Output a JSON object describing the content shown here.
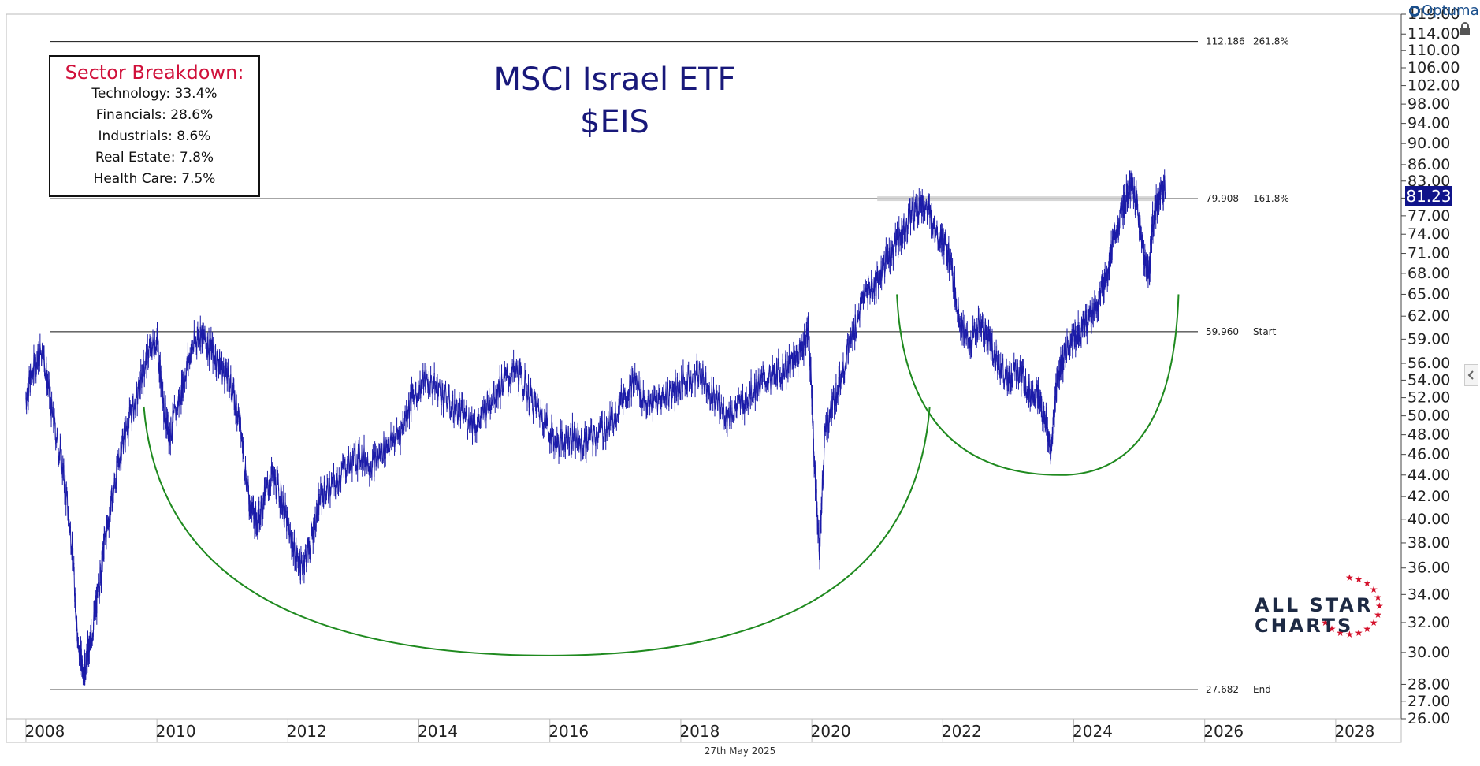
{
  "title": {
    "line1": "MSCI Israel ETF",
    "line2": "$EIS"
  },
  "sector_box": {
    "title": "Sector Breakdown:",
    "items": [
      "Technology: 33.4%",
      "Financials: 28.6%",
      "Industrials: 8.6%",
      "Real Estate: 7.8%",
      "Health Care: 7.5%"
    ]
  },
  "date_label": "27th May 2025",
  "brand": "Optuma",
  "logo": {
    "line1": "ALL STAR",
    "line2": "CHARTS"
  },
  "last_price": "81.23",
  "chart_data": {
    "type": "line",
    "title": "MSCI Israel ETF $EIS",
    "y_scale": "log",
    "ylim": [
      26,
      119
    ],
    "xlim": [
      2007.7,
      2029.0
    ],
    "x_ticks": [
      "2008",
      "2010",
      "2012",
      "2014",
      "2016",
      "2018",
      "2020",
      "2022",
      "2024",
      "2026",
      "2028"
    ],
    "y_ticks": [
      "119.00",
      "114.00",
      "110.00",
      "106.00",
      "102.00",
      "98.00",
      "94.00",
      "90.00",
      "86.00",
      "83.00",
      "80.00",
      "77.00",
      "74.00",
      "71.00",
      "68.00",
      "65.00",
      "62.00",
      "59.00",
      "56.00",
      "54.00",
      "52.00",
      "50.00",
      "48.00",
      "46.00",
      "44.00",
      "42.00",
      "40.00",
      "38.00",
      "36.00",
      "34.00",
      "32.00",
      "30.00",
      "28.00",
      "27.00",
      "26.00"
    ],
    "levels": [
      {
        "value": 112.186,
        "label": "112.186",
        "tag": "261.8%"
      },
      {
        "value": 79.908,
        "label": "79.908",
        "tag": "161.8%"
      },
      {
        "value": 59.96,
        "label": "59.960",
        "tag": "Start"
      },
      {
        "value": 27.682,
        "label": "27.682",
        "tag": "End"
      }
    ],
    "series": [
      {
        "x": [
          2008.0,
          2008.1,
          2008.25,
          2008.4,
          2008.55,
          2008.7,
          2008.8,
          2008.9,
          2009.0,
          2009.1,
          2009.2,
          2009.35,
          2009.5,
          2009.7,
          2009.85,
          2010.0,
          2010.1,
          2010.2,
          2010.35,
          2010.5,
          2010.65,
          2010.8,
          2010.95,
          2011.1,
          2011.25,
          2011.4,
          2011.5,
          2011.6,
          2011.75,
          2011.9,
          2012.05,
          2012.2,
          2012.35,
          2012.5,
          2012.7,
          2012.9,
          2013.1,
          2013.3,
          2013.5,
          2013.7,
          2013.9,
          2014.1,
          2014.3,
          2014.5,
          2014.7,
          2014.9,
          2015.1,
          2015.3,
          2015.5,
          2015.7,
          2015.9,
          2016.1,
          2016.3,
          2016.5,
          2016.7,
          2016.9,
          2017.1,
          2017.3,
          2017.5,
          2017.7,
          2017.9,
          2018.1,
          2018.3,
          2018.5,
          2018.7,
          2018.9,
          2019.1,
          2019.3,
          2019.5,
          2019.7,
          2019.85,
          2019.95,
          2020.05,
          2020.12,
          2020.2,
          2020.35,
          2020.5,
          2020.65,
          2020.8,
          2020.95,
          2021.1,
          2021.25,
          2021.4,
          2021.55,
          2021.7,
          2021.85,
          2022.0,
          2022.1,
          2022.25,
          2022.4,
          2022.55,
          2022.7,
          2022.85,
          2023.0,
          2023.15,
          2023.3,
          2023.45,
          2023.55,
          2023.65,
          2023.75,
          2023.85,
          2024.0,
          2024.1,
          2024.25,
          2024.4,
          2024.5,
          2024.6,
          2024.75,
          2024.85,
          2024.95,
          2025.05,
          2025.15,
          2025.2,
          2025.3,
          2025.4
        ],
        "y": [
          52,
          55,
          58,
          50,
          45,
          38,
          30,
          29,
          31,
          34,
          38,
          43,
          48,
          52,
          57,
          59,
          51,
          48,
          52,
          57,
          60,
          58,
          56,
          54,
          50,
          42,
          40,
          41,
          44,
          42,
          38,
          36,
          38,
          42,
          43,
          45,
          46,
          45,
          47,
          48,
          52,
          54,
          53,
          51,
          50,
          49,
          52,
          54,
          55,
          52,
          50,
          47,
          48,
          47,
          48,
          49,
          52,
          54,
          51,
          52,
          53,
          54,
          55,
          52,
          50,
          51,
          53,
          54,
          55,
          56,
          58,
          60,
          44,
          37,
          48,
          52,
          56,
          60,
          65,
          66,
          69,
          72,
          75,
          78,
          79,
          76,
          73,
          70,
          62,
          58,
          61,
          59,
          56,
          54,
          55,
          53,
          52,
          50,
          46,
          54,
          57,
          59,
          60,
          62,
          64,
          68,
          72,
          78,
          82,
          80,
          72,
          68,
          76,
          80,
          82
        ]
      }
    ],
    "arcs": [
      {
        "from": [
          2009.8,
          51
        ],
        "bottom": [
          2016.0,
          29.8
        ],
        "to": [
          2021.8,
          51
        ]
      },
      {
        "from": [
          2021.3,
          65
        ],
        "bottom": [
          2023.8,
          44
        ],
        "to": [
          2025.6,
          65
        ]
      }
    ]
  }
}
